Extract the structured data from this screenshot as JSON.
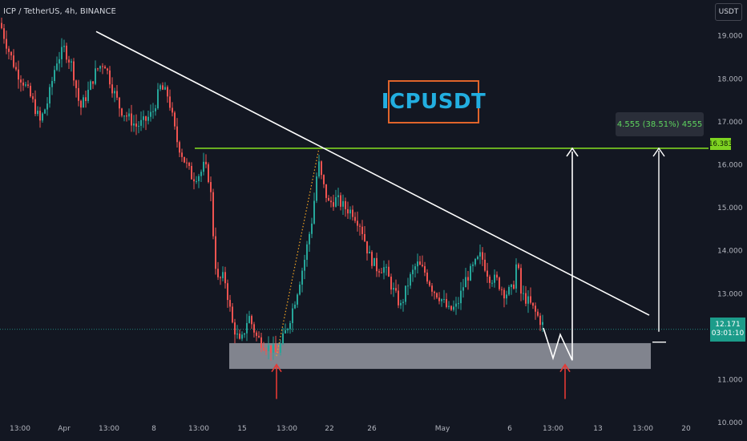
{
  "header": {
    "symbol_info": "ICP / TetherUS, 4h, BINANCE",
    "currency_button": "USDT"
  },
  "annotations": {
    "brand_label": "ICPUSDT",
    "measure_label": "4.555 (38.51%) 4555"
  },
  "price_labels": {
    "resistance": "16.383",
    "current_price": "12.171",
    "countdown": "03:01:10"
  },
  "colors": {
    "background": "#131722",
    "up_candle": "#26a69a",
    "down_candle": "#ef5350",
    "resistance_line": "#7ed321",
    "trendline": "#ffffff",
    "support_zone": "#9598a1",
    "arrow": "#e53935",
    "brand_text": "#22aee0",
    "brand_border": "#e0642b"
  },
  "chart_data": {
    "type": "candlestick",
    "title": "",
    "symbol": "ICP / TetherUS",
    "interval": "4h",
    "exchange": "BINANCE",
    "y_axis": {
      "ticks": [
        "10.000",
        "11.000",
        "12.000",
        "13.000",
        "14.000",
        "15.000",
        "16.000",
        "17.000",
        "18.000",
        "19.000"
      ],
      "range": [
        10.0,
        19.8
      ]
    },
    "x_axis": {
      "ticks": [
        "13:00",
        "Apr",
        "13:00",
        "8",
        "13:00",
        "15",
        "13:00",
        "22",
        "26",
        "May",
        "6",
        "13:00",
        "13",
        "13:00",
        "20"
      ]
    },
    "price_path": [
      [
        0,
        19.3
      ],
      [
        10,
        18.7
      ],
      [
        20,
        18.2
      ],
      [
        30,
        17.9
      ],
      [
        40,
        17.5
      ],
      [
        50,
        17.0
      ],
      [
        60,
        17.5
      ],
      [
        70,
        18.4
      ],
      [
        80,
        18.7
      ],
      [
        90,
        18.3
      ],
      [
        100,
        17.3
      ],
      [
        110,
        17.7
      ],
      [
        120,
        18.2
      ],
      [
        130,
        18.4
      ],
      [
        140,
        17.8
      ],
      [
        150,
        17.3
      ],
      [
        160,
        17.1
      ],
      [
        170,
        16.9
      ],
      [
        180,
        17.0
      ],
      [
        190,
        17.2
      ],
      [
        200,
        17.8
      ],
      [
        210,
        17.6
      ],
      [
        220,
        16.6
      ],
      [
        230,
        16.1
      ],
      [
        240,
        15.7
      ],
      [
        250,
        15.8
      ],
      [
        255,
        16.0
      ],
      [
        262,
        15.6
      ],
      [
        268,
        13.8
      ],
      [
        272,
        13.3
      ],
      [
        280,
        13.4
      ],
      [
        290,
        12.3
      ],
      [
        300,
        11.8
      ],
      [
        310,
        12.5
      ],
      [
        320,
        12.0
      ],
      [
        330,
        11.8
      ],
      [
        340,
        11.7
      ],
      [
        345,
        11.6
      ],
      [
        350,
        11.8
      ],
      [
        360,
        12.3
      ],
      [
        370,
        13.0
      ],
      [
        380,
        13.8
      ],
      [
        390,
        14.8
      ],
      [
        397,
        16.1
      ],
      [
        402,
        15.6
      ],
      [
        410,
        15.1
      ],
      [
        420,
        15.2
      ],
      [
        430,
        15.0
      ],
      [
        440,
        14.9
      ],
      [
        450,
        14.6
      ],
      [
        460,
        13.9
      ],
      [
        470,
        13.6
      ],
      [
        480,
        13.6
      ],
      [
        490,
        13.1
      ],
      [
        500,
        12.7
      ],
      [
        510,
        13.3
      ],
      [
        520,
        13.7
      ],
      [
        530,
        13.5
      ],
      [
        540,
        13.1
      ],
      [
        550,
        12.9
      ],
      [
        560,
        12.6
      ],
      [
        570,
        12.7
      ],
      [
        580,
        13.3
      ],
      [
        590,
        13.6
      ],
      [
        600,
        13.9
      ],
      [
        610,
        13.4
      ],
      [
        620,
        13.3
      ],
      [
        630,
        13.0
      ],
      [
        640,
        13.1
      ],
      [
        645,
        13.8
      ],
      [
        650,
        13.0
      ],
      [
        660,
        12.8
      ],
      [
        670,
        12.5
      ],
      [
        678,
        12.25
      ]
    ],
    "lines": {
      "descending_trendline": {
        "from": [
          120,
          19.1
        ],
        "to": [
          810,
          12.5
        ]
      },
      "resistance": {
        "price": 16.383
      },
      "support_zone": {
        "price_low": 11.25,
        "price_high": 11.85
      }
    },
    "measure": {
      "change": 4.555,
      "percent": 38.51,
      "ticks": 4555
    }
  }
}
